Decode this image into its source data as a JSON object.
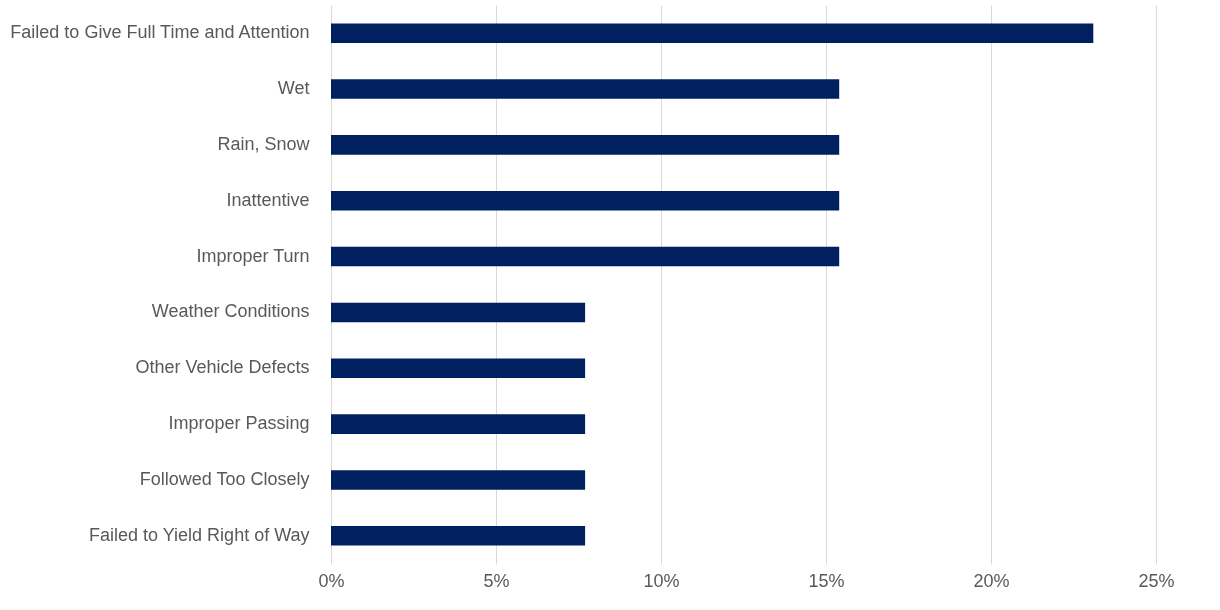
{
  "chart_data": {
    "type": "bar",
    "orientation": "horizontal",
    "categories": [
      "Failed to Give Full Time and Attention",
      "Wet",
      "Rain, Snow",
      "Inattentive",
      "Improper Turn",
      "Weather Conditions",
      "Other Vehicle Defects",
      "Improper Passing",
      "Followed Too Closely",
      "Failed to Yield Right of Way"
    ],
    "values": [
      23.1,
      15.4,
      15.4,
      15.4,
      15.4,
      7.7,
      7.7,
      7.7,
      7.7,
      7.7
    ],
    "color": "#002060",
    "xlim": [
      0,
      25
    ],
    "xticks": [
      {
        "value": 0,
        "label": "0%"
      },
      {
        "value": 5,
        "label": "5%"
      },
      {
        "value": 10,
        "label": "10%"
      },
      {
        "value": 15,
        "label": "15%"
      },
      {
        "value": 20,
        "label": "20%"
      },
      {
        "value": 25,
        "label": "25%"
      }
    ],
    "grid": "x"
  }
}
